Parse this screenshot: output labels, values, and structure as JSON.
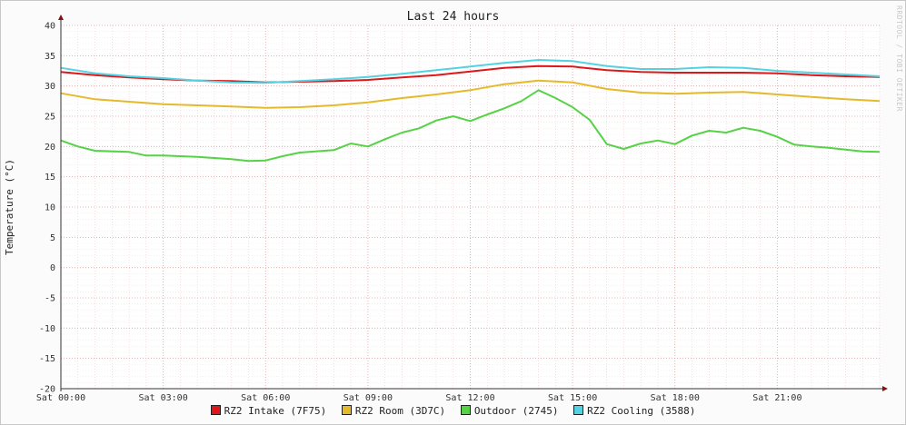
{
  "watermark": "RRDTOOL / TOBI OETIKER",
  "chart_data": {
    "type": "line",
    "title": "Last 24 hours",
    "ylabel": "Temperature (°C)",
    "ylim": [
      -20,
      40
    ],
    "yticks": [
      40,
      35,
      30,
      25,
      20,
      15,
      10,
      5,
      0,
      -5,
      -10,
      -15,
      -20
    ],
    "xlim": [
      0,
      24
    ],
    "xticks": [
      {
        "h": 0,
        "label": "Sat 00:00"
      },
      {
        "h": 3,
        "label": "Sat 03:00"
      },
      {
        "h": 6,
        "label": "Sat 06:00"
      },
      {
        "h": 9,
        "label": "Sat 09:00"
      },
      {
        "h": 12,
        "label": "Sat 12:00"
      },
      {
        "h": 15,
        "label": "Sat 15:00"
      },
      {
        "h": 18,
        "label": "Sat 18:00"
      },
      {
        "h": 21,
        "label": "Sat 21:00"
      }
    ],
    "grid": true,
    "legend_position": "bottom",
    "x_unit": "hours since Sat 00:00",
    "series": [
      {
        "name": "RZ2 Intake (7F75)",
        "color": "#e0171a",
        "x": [
          0,
          1,
          2,
          3,
          4,
          5,
          6,
          7,
          8,
          9,
          10,
          11,
          12,
          13,
          14,
          15,
          16,
          17,
          18,
          19,
          20,
          21,
          22,
          23,
          24
        ],
        "y": [
          32.3,
          31.8,
          31.4,
          31.1,
          30.9,
          30.8,
          30.6,
          30.7,
          30.8,
          31.0,
          31.4,
          31.8,
          32.4,
          33.0,
          33.3,
          33.2,
          32.6,
          32.3,
          32.2,
          32.2,
          32.2,
          32.1,
          31.8,
          31.6,
          31.5
        ]
      },
      {
        "name": "RZ2 Room (3D7C)",
        "color": "#e5ba2a",
        "x": [
          0,
          1,
          2,
          3,
          4,
          5,
          6,
          7,
          8,
          9,
          10,
          11,
          12,
          13,
          14,
          15,
          16,
          17,
          18,
          19,
          20,
          21,
          22,
          23,
          24
        ],
        "y": [
          28.8,
          27.8,
          27.4,
          27.0,
          26.8,
          26.6,
          26.4,
          26.5,
          26.8,
          27.3,
          28.0,
          28.6,
          29.3,
          30.3,
          30.9,
          30.6,
          29.5,
          28.9,
          28.7,
          28.9,
          29.0,
          28.6,
          28.2,
          27.8,
          27.5
        ]
      },
      {
        "name": "Outdoor (2745)",
        "color": "#56d246",
        "x": [
          0,
          0.5,
          1,
          2,
          2.5,
          3,
          4,
          5,
          5.5,
          6,
          6.5,
          7,
          8,
          8.5,
          9,
          9.5,
          10,
          10.5,
          11,
          11.5,
          12,
          12.5,
          13,
          13.5,
          14,
          14.5,
          15,
          15.5,
          16,
          16.5,
          17,
          17.5,
          18,
          18.5,
          19,
          19.5,
          20,
          20.5,
          21,
          21.5,
          22,
          22.5,
          23,
          23.5,
          24
        ],
        "y": [
          21.0,
          20.0,
          19.3,
          19.1,
          18.5,
          18.5,
          18.3,
          17.9,
          17.6,
          17.7,
          18.4,
          19.0,
          19.4,
          20.5,
          20.0,
          21.2,
          22.3,
          23.0,
          24.3,
          25.0,
          24.2,
          25.3,
          26.3,
          27.5,
          29.3,
          28.0,
          26.5,
          24.4,
          20.4,
          19.6,
          20.5,
          21.0,
          20.4,
          21.8,
          22.6,
          22.3,
          23.1,
          22.6,
          21.6,
          20.3,
          20.0,
          19.8,
          19.5,
          19.2,
          19.1
        ]
      },
      {
        "name": "RZ2 Cooling (3588)",
        "color": "#54d2e2",
        "x": [
          0,
          1,
          2,
          3,
          4,
          5,
          6,
          7,
          8,
          9,
          10,
          11,
          12,
          13,
          14,
          15,
          16,
          17,
          18,
          19,
          20,
          21,
          22,
          23,
          24
        ],
        "y": [
          33.0,
          32.1,
          31.6,
          31.3,
          30.9,
          30.6,
          30.5,
          30.8,
          31.1,
          31.5,
          32.0,
          32.6,
          33.2,
          33.8,
          34.3,
          34.1,
          33.3,
          32.8,
          32.8,
          33.1,
          33.0,
          32.5,
          32.2,
          31.9,
          31.6
        ]
      }
    ]
  }
}
